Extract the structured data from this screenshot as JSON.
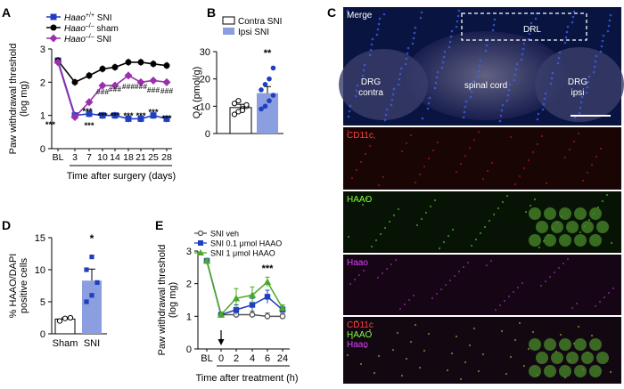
{
  "panels": {
    "A": {
      "letter": "A",
      "ylabel_lines": [
        "Paw withdrawal threshold",
        "(log mg)"
      ],
      "xlabel": "Time after surgery (days)",
      "yticks": [
        0,
        1,
        2,
        3
      ],
      "xticks": [
        "BL",
        "3",
        "7",
        "10",
        "14",
        "18",
        "21",
        "25",
        "28"
      ],
      "legend": [
        {
          "prefix": "Haao",
          "sup": "+/+",
          "suffix": " SNI",
          "color": "#1f3fbf",
          "marker": "square"
        },
        {
          "prefix": "Haao",
          "sup": "–/–",
          "suffix": " sham",
          "color": "#000000",
          "marker": "circle"
        },
        {
          "prefix": "Haao",
          "sup": "–/–",
          "suffix": " SNI",
          "color": "#9b2fae",
          "marker": "diamond"
        }
      ],
      "stars": [
        "***",
        "***",
        "***",
        "***",
        "***",
        "***",
        "***",
        "***"
      ],
      "hashes": [
        "###",
        "###",
        "###",
        "###",
        "###",
        "###"
      ],
      "bl_stars": "***",
      "day3_stars": "***"
    },
    "B": {
      "letter": "B",
      "ylabel": "QA (pmol/g)",
      "yticks": [
        0,
        10,
        20,
        30
      ],
      "legend": [
        "Contra SNI",
        "Ipsi SNI"
      ],
      "sig": "**"
    },
    "C": {
      "letter": "C",
      "images": [
        {
          "labels": [
            {
              "text": "Merge",
              "color": "#ffffff"
            }
          ]
        },
        {
          "labels": [
            {
              "text": "CD11c",
              "color": "#ff4040"
            }
          ]
        },
        {
          "labels": [
            {
              "text": "HAAO",
              "color": "#7fff3f"
            }
          ]
        },
        {
          "labels": [
            {
              "text": "Haao",
              "color": "#e040ff"
            }
          ]
        },
        {
          "labels": [
            {
              "text": "CD11c",
              "color": "#ff4040"
            },
            {
              "text": "HAAO",
              "color": "#7fff3f"
            },
            {
              "text": "Haao",
              "color": "#e040ff"
            }
          ]
        }
      ],
      "annotations": {
        "drl": "DRL",
        "drg_contra": [
          "DRG",
          "contra"
        ],
        "spinal_cord": "spinal cord",
        "drg_ipsi": [
          "DRG",
          "ipsi"
        ]
      }
    },
    "D": {
      "letter": "D",
      "ylabel_lines": [
        "% HAAO/DAPI",
        "positive cells"
      ],
      "yticks": [
        0,
        5,
        10,
        15
      ],
      "categories": [
        "Sham",
        "SNI"
      ],
      "sig": "*"
    },
    "E": {
      "letter": "E",
      "ylabel_lines": [
        "Paw withdrawal threshold",
        "(log mg)"
      ],
      "xlabel": "Time after treatment (h)",
      "yticks": [
        0,
        1,
        2,
        3
      ],
      "xticks": [
        "BL",
        "0",
        "2",
        "4",
        "6",
        "24"
      ],
      "legend": [
        {
          "text": "SNI veh",
          "color": "#555555",
          "marker": "open-circle"
        },
        {
          "text": "SNI 0.1 μmol HAAO",
          "color": "#1f3fbf",
          "marker": "square"
        },
        {
          "text": "SNI 1 μmol HAAO",
          "color": "#4aa82a",
          "marker": "triangle"
        }
      ],
      "sig": "***"
    }
  },
  "colors": {
    "blue": "#1f3fbf",
    "black": "#000000",
    "purple": "#9b2fae",
    "green": "#4aa82a",
    "bar_fill": "#8a9ee0",
    "bar_open": "#ffffff"
  },
  "chart_data": [
    {
      "panel": "A",
      "type": "line",
      "x": [
        "BL",
        "3",
        "7",
        "10",
        "14",
        "18",
        "21",
        "25",
        "28"
      ],
      "ylim": [
        0,
        3
      ],
      "series": [
        {
          "name": "Haao+/+ SNI",
          "values": [
            2.65,
            1.0,
            1.05,
            1.0,
            1.0,
            0.9,
            0.9,
            1.0,
            0.9
          ]
        },
        {
          "name": "Haao–/– sham",
          "values": [
            2.65,
            2.0,
            2.2,
            2.4,
            2.45,
            2.6,
            2.6,
            2.55,
            2.5
          ]
        },
        {
          "name": "Haao–/– SNI",
          "values": [
            2.6,
            0.95,
            1.4,
            1.9,
            1.9,
            2.2,
            2.0,
            2.05,
            2.0
          ]
        }
      ]
    },
    {
      "panel": "B",
      "type": "bar",
      "categories": [
        "Contra SNI",
        "Ipsi SNI"
      ],
      "values": [
        9.5,
        14.8
      ],
      "errors": [
        1.2,
        2.4
      ],
      "ylim": [
        0,
        30
      ],
      "points": [
        [
          7,
          8,
          9,
          10,
          11,
          12,
          8.5,
          10.5
        ],
        [
          9,
          10,
          12,
          14,
          16,
          18,
          20,
          24
        ]
      ]
    },
    {
      "panel": "D",
      "type": "bar",
      "categories": [
        "Sham",
        "SNI"
      ],
      "values": [
        2.3,
        8.3
      ],
      "errors": [
        0.2,
        1.8
      ],
      "ylim": [
        0,
        15
      ],
      "points": [
        [
          2.0,
          2.4,
          2.5
        ],
        [
          5,
          6,
          8,
          10,
          12
        ]
      ]
    },
    {
      "panel": "E",
      "type": "line",
      "x": [
        "BL",
        "0",
        "2",
        "4",
        "6",
        "24"
      ],
      "ylim": [
        0,
        3
      ],
      "series": [
        {
          "name": "SNI veh",
          "values": [
            2.7,
            1.05,
            1.05,
            1.05,
            1.0,
            1.0
          ]
        },
        {
          "name": "SNI 0.1 μmol HAAO",
          "values": [
            2.7,
            1.05,
            1.2,
            1.35,
            1.6,
            1.2
          ]
        },
        {
          "name": "SNI 1 μmol HAAO",
          "values": [
            2.7,
            1.05,
            1.55,
            1.65,
            2.05,
            1.25
          ]
        }
      ]
    }
  ]
}
